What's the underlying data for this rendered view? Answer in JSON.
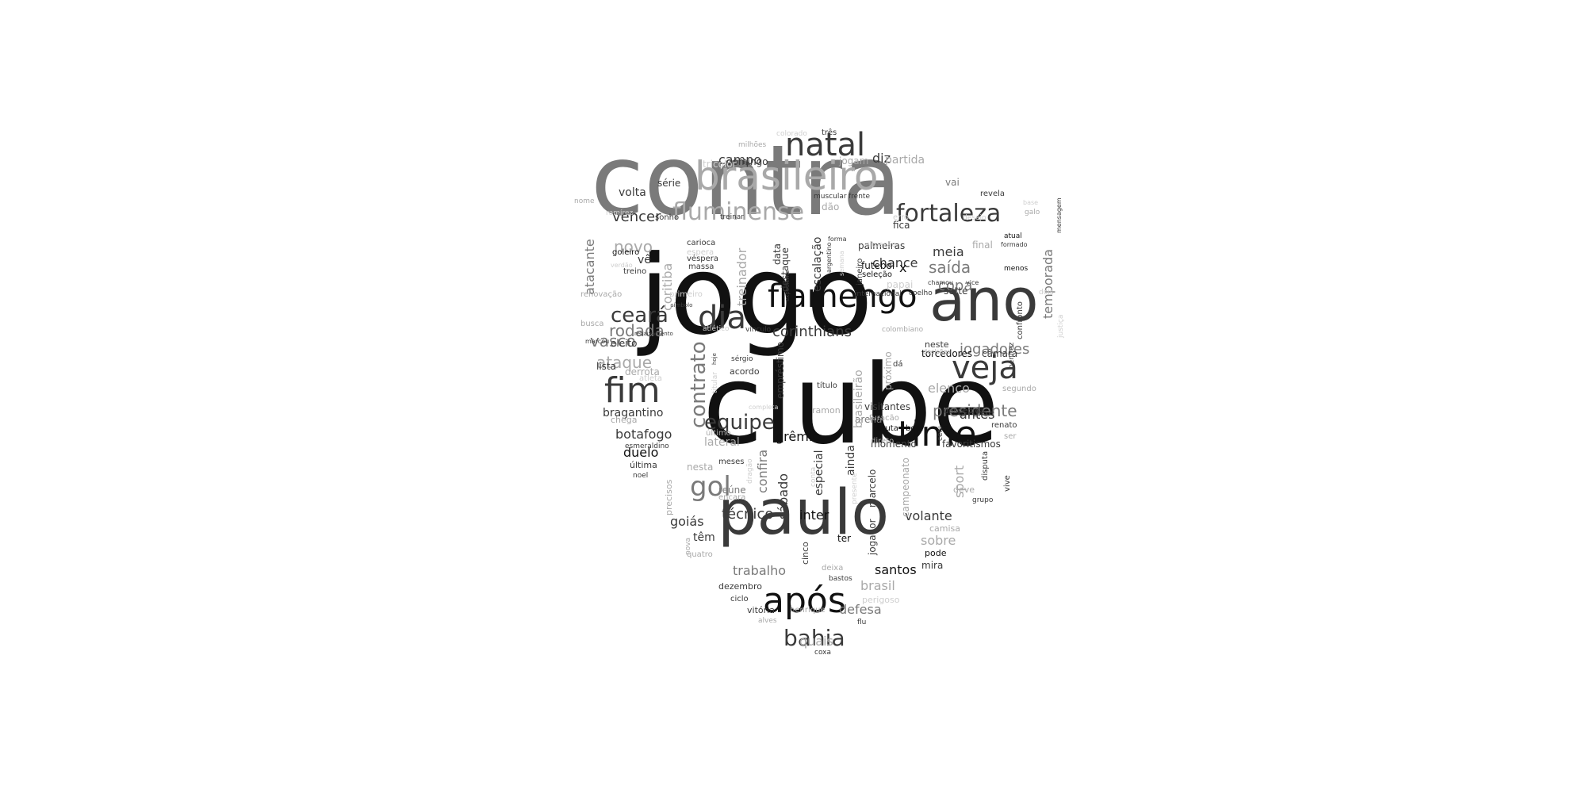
{
  "colors": {
    "background": "#ffffff",
    "black": "#111111",
    "dark": "#3a3a3a",
    "mid": "#7a7a7a",
    "light": "#a9a9a9",
    "pale": "#cfcfcf"
  },
  "words": [
    {
      "text": "contra",
      "shade": "mid"
    },
    {
      "text": "jogo",
      "shade": "black"
    },
    {
      "text": "clube",
      "shade": "black"
    },
    {
      "text": "paulo",
      "shade": "dark"
    },
    {
      "text": "ano",
      "shade": "dark"
    },
    {
      "text": "brasileiro",
      "shade": "light"
    },
    {
      "text": "natal",
      "shade": "dark"
    },
    {
      "text": "fluminense",
      "shade": "light"
    },
    {
      "text": "fortaleza",
      "shade": "dark"
    },
    {
      "text": "flamengo",
      "shade": "black"
    },
    {
      "text": "dia",
      "shade": "dark"
    },
    {
      "text": "veja",
      "shade": "dark"
    },
    {
      "text": "fim",
      "shade": "dark"
    },
    {
      "text": "time",
      "shade": "black"
    },
    {
      "text": "após",
      "shade": "black"
    },
    {
      "text": "contrato",
      "shade": "mid"
    },
    {
      "text": "equipe",
      "shade": "dark"
    },
    {
      "text": "bahia",
      "shade": "dark"
    },
    {
      "text": "gol",
      "shade": "mid"
    },
    {
      "text": "ceará",
      "shade": "dark"
    },
    {
      "text": "presidente",
      "shade": "mid"
    },
    {
      "text": "jogadores",
      "shade": "mid"
    },
    {
      "text": "corinthians",
      "shade": "dark"
    },
    {
      "text": "rodada",
      "shade": "mid"
    },
    {
      "text": "vasco",
      "shade": "mid"
    },
    {
      "text": "ataque",
      "shade": "light"
    },
    {
      "text": "novo",
      "shade": "light"
    },
    {
      "text": "vencer",
      "shade": "dark"
    },
    {
      "text": "campo",
      "shade": "dark"
    },
    {
      "text": "diz",
      "shade": "dark"
    },
    {
      "text": "saída",
      "shade": "mid"
    },
    {
      "text": "copa",
      "shade": "mid"
    },
    {
      "text": "meia",
      "shade": "dark"
    },
    {
      "text": "chance",
      "shade": "dark"
    },
    {
      "text": "palmeiras",
      "shade": "dark"
    },
    {
      "text": "temporada",
      "shade": "mid"
    },
    {
      "text": "atacante",
      "shade": "mid"
    },
    {
      "text": "coritiba",
      "shade": "light"
    },
    {
      "text": "treinador",
      "shade": "light"
    },
    {
      "text": "escalação",
      "shade": "dark"
    },
    {
      "text": "botafogo",
      "shade": "dark"
    },
    {
      "text": "duelo",
      "shade": "black"
    },
    {
      "text": "grêmio",
      "shade": "black"
    },
    {
      "text": "confira",
      "shade": "mid"
    },
    {
      "text": "sábado",
      "shade": "dark"
    },
    {
      "text": "especial",
      "shade": "dark"
    },
    {
      "text": "ainda",
      "shade": "dark"
    },
    {
      "text": "técnico",
      "shade": "dark"
    },
    {
      "text": "inter",
      "shade": "black"
    },
    {
      "text": "volante",
      "shade": "dark"
    },
    {
      "text": "goiás",
      "shade": "dark"
    },
    {
      "text": "têm",
      "shade": "dark"
    },
    {
      "text": "trabalho",
      "shade": "mid"
    },
    {
      "text": "santos",
      "shade": "black"
    },
    {
      "text": "brasil",
      "shade": "light"
    },
    {
      "text": "sobre",
      "shade": "light"
    },
    {
      "text": "defesa",
      "shade": "mid"
    },
    {
      "text": "quais",
      "shade": "light"
    },
    {
      "text": "elenco",
      "shade": "light"
    },
    {
      "text": "antes",
      "shade": "dark"
    },
    {
      "text": "momento",
      "shade": "dark"
    },
    {
      "text": "favoritismos",
      "shade": "dark"
    },
    {
      "text": "visitantes",
      "shade": "dark"
    },
    {
      "text": "arena",
      "shade": "mid"
    },
    {
      "text": "torcedores",
      "shade": "black"
    },
    {
      "text": "câmara",
      "shade": "dark"
    },
    {
      "text": "sport",
      "shade": "light"
    },
    {
      "text": "brasileirão",
      "shade": "light"
    },
    {
      "text": "marcelo",
      "shade": "dark"
    },
    {
      "text": "jogador",
      "shade": "dark"
    },
    {
      "text": "campeonato",
      "shade": "light"
    },
    {
      "text": "próximo",
      "shade": "light"
    },
    {
      "text": "empréstimo",
      "shade": "dark"
    },
    {
      "text": "bragantino",
      "shade": "dark"
    },
    {
      "text": "lateral",
      "shade": "light"
    },
    {
      "text": "série",
      "shade": "dark"
    },
    {
      "text": "volta",
      "shade": "dark"
    },
    {
      "text": "domingo",
      "shade": "dark"
    },
    {
      "text": "partida",
      "shade": "light"
    },
    {
      "text": "jogam",
      "shade": "light"
    },
    {
      "text": "tricolor",
      "shade": "pale"
    },
    {
      "text": "vai",
      "shade": "mid"
    },
    {
      "text": "revela",
      "shade": "dark"
    },
    {
      "text": "sonho",
      "shade": "dark"
    },
    {
      "text": "goleiro",
      "shade": "black"
    },
    {
      "text": "vê",
      "shade": "dark"
    },
    {
      "text": "treino",
      "shade": "dark"
    },
    {
      "text": "massa",
      "shade": "dark"
    },
    {
      "text": "carioca",
      "shade": "dark"
    },
    {
      "text": "espera",
      "shade": "pale"
    },
    {
      "text": "véspera",
      "shade": "dark"
    },
    {
      "text": "data",
      "shade": "dark"
    },
    {
      "text": "destaque",
      "shade": "dark"
    },
    {
      "text": "janeiro",
      "shade": "dark"
    },
    {
      "text": "futebol",
      "shade": "black"
    },
    {
      "text": "seleção",
      "shade": "black"
    },
    {
      "text": "x",
      "shade": "black"
    },
    {
      "text": "fica",
      "shade": "dark"
    },
    {
      "text": "erro",
      "shade": "pale"
    },
    {
      "text": "final",
      "shade": "light"
    },
    {
      "text": "atual",
      "shade": "black"
    },
    {
      "text": "formado",
      "shade": "dark"
    },
    {
      "text": "menos",
      "shade": "black"
    },
    {
      "text": "confronto",
      "shade": "dark"
    },
    {
      "text": "sette",
      "shade": "dark"
    },
    {
      "text": "papai",
      "shade": "pale"
    },
    {
      "text": "coelho",
      "shade": "dark"
    },
    {
      "text": "primeiro",
      "shade": "pale"
    },
    {
      "text": "renovação",
      "shade": "light"
    },
    {
      "text": "símbolo",
      "shade": "dark"
    },
    {
      "text": "rebaixamento",
      "shade": "dark"
    },
    {
      "text": "eleito",
      "shade": "dark"
    },
    {
      "text": "marcou",
      "shade": "dark"
    },
    {
      "text": "busca",
      "shade": "light"
    },
    {
      "text": "lista",
      "shade": "dark"
    },
    {
      "text": "derrota",
      "shade": "light"
    },
    {
      "text": "atleta",
      "shade": "pale"
    },
    {
      "text": "chega",
      "shade": "light"
    },
    {
      "text": "esmeraldino",
      "shade": "dark"
    },
    {
      "text": "última",
      "shade": "dark"
    },
    {
      "text": "noel",
      "shade": "dark"
    },
    {
      "text": "precisos",
      "shade": "light"
    },
    {
      "text": "nesta",
      "shade": "light"
    },
    {
      "text": "meses",
      "shade": "dark"
    },
    {
      "text": "reúne",
      "shade": "mid"
    },
    {
      "text": "encara",
      "shade": "light"
    },
    {
      "text": "sérgio",
      "shade": "dark"
    },
    {
      "text": "acordo",
      "shade": "dark"
    },
    {
      "text": "título",
      "shade": "dark"
    },
    {
      "text": "ramon",
      "shade": "light"
    },
    {
      "text": "bruta",
      "shade": "black"
    },
    {
      "text": "bom",
      "shade": "black"
    },
    {
      "text": "despedida",
      "shade": "dark"
    },
    {
      "text": "renato",
      "shade": "dark"
    },
    {
      "text": "segundo",
      "shade": "light"
    },
    {
      "text": "ser",
      "shade": "light"
    },
    {
      "text": "vive",
      "shade": "dark"
    },
    {
      "text": "disputa",
      "shade": "dark"
    },
    {
      "text": "grupo",
      "shade": "dark"
    },
    {
      "text": "deve",
      "shade": "light"
    },
    {
      "text": "camisa",
      "shade": "light"
    },
    {
      "text": "pode",
      "shade": "black"
    },
    {
      "text": "mira",
      "shade": "dark"
    },
    {
      "text": "ter",
      "shade": "black"
    },
    {
      "text": "cinco",
      "shade": "dark"
    },
    {
      "text": "quatro",
      "shade": "light"
    },
    {
      "text": "nova",
      "shade": "light"
    },
    {
      "text": "dezembro",
      "shade": "dark"
    },
    {
      "text": "ciclo",
      "shade": "dark"
    },
    {
      "text": "vitória",
      "shade": "dark"
    },
    {
      "text": "henrique",
      "shade": "light"
    },
    {
      "text": "bastos",
      "shade": "dark"
    },
    {
      "text": "perigoso",
      "shade": "pale"
    },
    {
      "text": "deixa",
      "shade": "light"
    },
    {
      "text": "flu",
      "shade": "dark"
    },
    {
      "text": "alves",
      "shade": "light"
    },
    {
      "text": "coxa",
      "shade": "dark"
    },
    {
      "text": "três",
      "shade": "dark"
    },
    {
      "text": "colorado",
      "shade": "pale"
    },
    {
      "text": "milhões",
      "shade": "light"
    },
    {
      "text": "muscular",
      "shade": "dark"
    },
    {
      "text": "frente",
      "shade": "dark"
    },
    {
      "text": "dão",
      "shade": "light"
    },
    {
      "text": "treinar",
      "shade": "dark"
    },
    {
      "text": "nome",
      "shade": "light"
    },
    {
      "text": "ramírez",
      "shade": "pale"
    },
    {
      "text": "verdão",
      "shade": "pale"
    },
    {
      "text": "desejo",
      "shade": "pale"
    },
    {
      "text": "base",
      "shade": "pale"
    },
    {
      "text": "galo",
      "shade": "light"
    },
    {
      "text": "mensagem",
      "shade": "dark"
    },
    {
      "text": "dois",
      "shade": "pale"
    },
    {
      "text": "justiça",
      "shade": "pale"
    },
    {
      "text": "internacional",
      "shade": "dark"
    },
    {
      "text": "chamou",
      "shade": "dark"
    },
    {
      "text": "vice",
      "shade": "dark"
    },
    {
      "text": "situação",
      "shade": "pale"
    },
    {
      "text": "forma",
      "shade": "dark"
    },
    {
      "text": "argentino",
      "shade": "dark"
    },
    {
      "text": "semana",
      "shade": "pale"
    },
    {
      "text": "expediente",
      "shade": "dark"
    },
    {
      "text": "vínculo",
      "shade": "dark"
    },
    {
      "text": "colombiano",
      "shade": "light"
    },
    {
      "text": "atlético",
      "shade": "pale"
    },
    {
      "text": "hoje",
      "shade": "dark"
    },
    {
      "text": "titular",
      "shade": "pale"
    },
    {
      "text": "decisões",
      "shade": "light"
    },
    {
      "text": "neste",
      "shade": "dark"
    },
    {
      "text": "benítez",
      "shade": "dark"
    },
    {
      "text": "dá",
      "shade": "dark"
    },
    {
      "text": "furacão",
      "shade": "light"
    },
    {
      "text": "ceni",
      "shade": "dark"
    },
    {
      "text": "direto",
      "shade": "light"
    },
    {
      "text": "completa",
      "shade": "pale"
    },
    {
      "text": "último",
      "shade": "light"
    },
    {
      "text": "dragão",
      "shade": "pale"
    },
    {
      "text": "conta",
      "shade": "pale"
    },
    {
      "text": "presente",
      "shade": "pale"
    }
  ]
}
